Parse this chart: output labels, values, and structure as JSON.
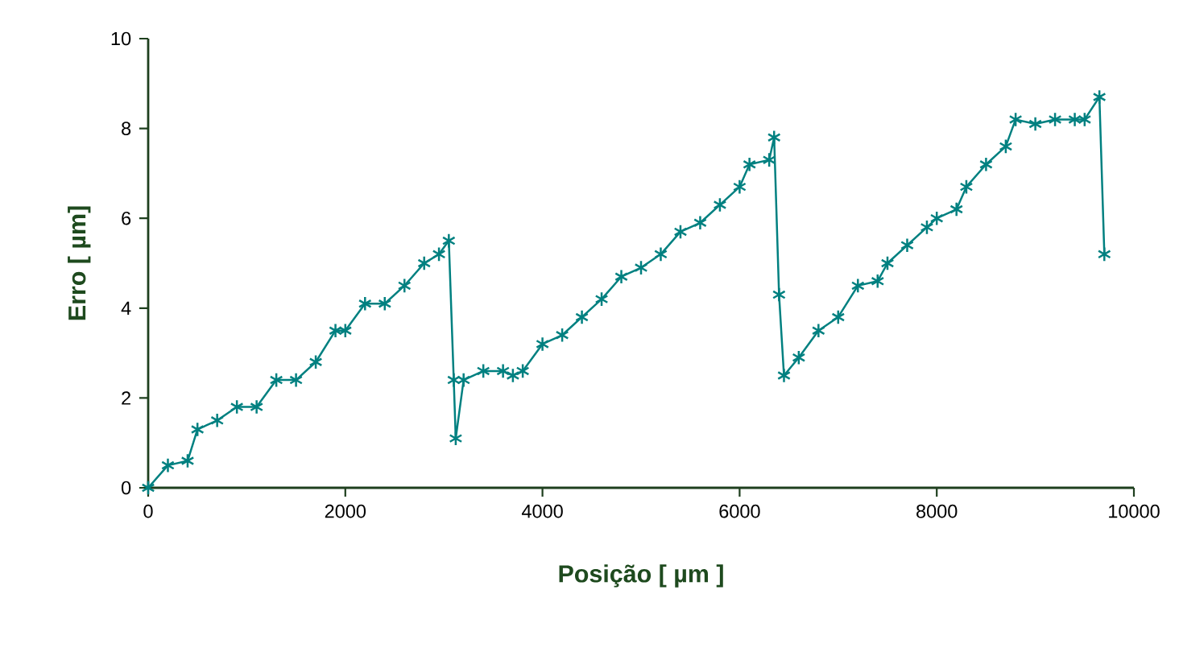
{
  "chart_data": {
    "type": "line",
    "xlabel": "Posição [ µm ]",
    "ylabel": "Erro [ µm]",
    "x": [
      0,
      200,
      400,
      500,
      700,
      900,
      1100,
      1300,
      1500,
      1700,
      1900,
      2000,
      2200,
      2400,
      2600,
      2800,
      2950,
      3050,
      3100,
      3120,
      3200,
      3400,
      3600,
      3700,
      3800,
      4000,
      4200,
      4400,
      4600,
      4800,
      5000,
      5200,
      5400,
      5600,
      5800,
      6000,
      6100,
      6300,
      6350,
      6400,
      6450,
      6600,
      6800,
      7000,
      7200,
      7400,
      7500,
      7700,
      7900,
      8000,
      8200,
      8300,
      8500,
      8700,
      8800,
      9000,
      9200,
      9400,
      9500,
      9650,
      9700
    ],
    "series": [
      {
        "color": "#008080",
        "values": [
          0,
          0.5,
          0.6,
          1.3,
          1.5,
          1.8,
          1.8,
          2.4,
          2.4,
          2.8,
          3.5,
          3.5,
          4.1,
          4.1,
          4.5,
          5.0,
          5.2,
          5.5,
          2.4,
          1.1,
          2.4,
          2.6,
          2.6,
          2.5,
          2.6,
          3.2,
          3.4,
          3.8,
          4.2,
          4.7,
          4.9,
          5.2,
          5.7,
          5.9,
          6.3,
          6.7,
          7.2,
          7.3,
          7.8,
          4.3,
          2.5,
          2.9,
          3.5,
          3.8,
          4.5,
          4.6,
          5.0,
          5.4,
          5.8,
          6.0,
          6.2,
          6.7,
          7.2,
          7.6,
          8.2,
          8.1,
          8.2,
          8.2,
          8.2,
          8.7,
          5.2
        ]
      }
    ],
    "xlim": [
      0,
      10000
    ],
    "xticks": [
      0,
      2000,
      4000,
      6000,
      8000,
      10000
    ],
    "ylim": [
      0,
      10
    ],
    "yticks": [
      0,
      2,
      4,
      6,
      8,
      10
    ],
    "marker": "cross",
    "line_style": "solid",
    "grid": false
  }
}
